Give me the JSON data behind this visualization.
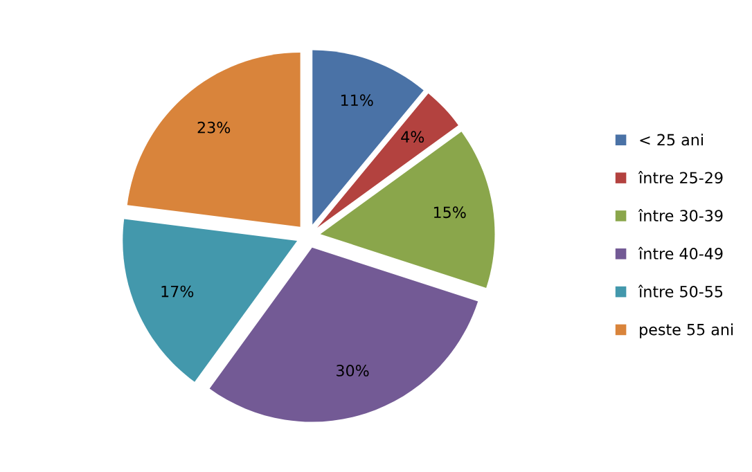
{
  "chart_data": {
    "type": "pie",
    "categories": [
      "< 25 ani",
      "între 25-29",
      "între 30-39",
      "între 40-49",
      "între 50-55",
      "peste 55 ani"
    ],
    "values": [
      11,
      4,
      15,
      30,
      17,
      23
    ],
    "colors": [
      "#4a72a6",
      "#b3423f",
      "#8aa64b",
      "#735a95",
      "#4398ac",
      "#d9843b"
    ],
    "value_labels": [
      "11%",
      "4%",
      "15%",
      "30%",
      "17%",
      "23%"
    ],
    "legend": "right"
  }
}
